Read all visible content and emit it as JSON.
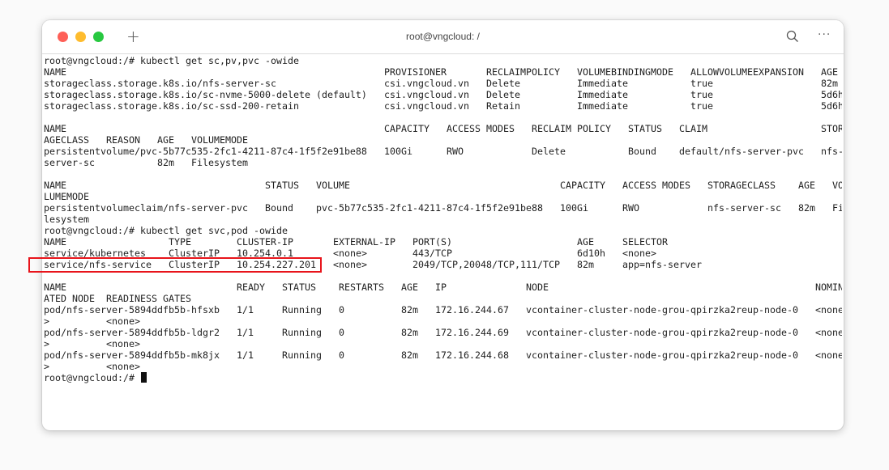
{
  "window": {
    "title": "root@vngcloud: /",
    "new_tab_label": "+",
    "more_label": "···",
    "highlight_color": "#e8141b"
  },
  "terminal": {
    "lines": [
      [
        "root@vngcloud:/# kubectl get sc,pv,pvc -owide"
      ],
      [
        "NAME",
        "PROVISIONER",
        "RECLAIMPOLICY",
        "VOLUMEBINDINGMODE",
        "ALLOWVOLUMEEXPANSION",
        "AGE"
      ],
      [
        "storageclass.storage.k8s.io/nfs-server-sc",
        "csi.vngcloud.vn",
        "Delete",
        "Immediate",
        "true",
        "82m"
      ],
      [
        "storageclass.storage.k8s.io/sc-nvme-5000-delete (default)",
        "csi.vngcloud.vn",
        "Delete",
        "Immediate",
        "true",
        "5d6h"
      ],
      [
        "storageclass.storage.k8s.io/sc-ssd-200-retain",
        "csi.vngcloud.vn",
        "Retain",
        "Immediate",
        "true",
        "5d6h"
      ],
      [],
      [
        "NAME",
        "CAPACITY",
        "ACCESS MODES",
        "RECLAIM POLICY",
        "STATUS",
        "CLAIM",
        "STOR"
      ],
      [
        "AGECLASS",
        "REASON",
        "AGE",
        "VOLUMEMODE"
      ],
      [
        "persistentvolume/pvc-5b77c535-2fc1-4211-87c4-1f5f2e91be88",
        "100Gi",
        "RWO",
        "Delete",
        "Bound",
        "default/nfs-server-pvc",
        "nfs-"
      ],
      [
        "server-sc",
        "82m",
        "Filesystem"
      ],
      [],
      [
        "NAME",
        "STATUS",
        "VOLUME",
        "CAPACITY",
        "ACCESS MODES",
        "STORAGECLASS",
        "AGE",
        "VO"
      ],
      [
        "LUMEMODE"
      ],
      [
        "persistentvolumeclaim/nfs-server-pvc",
        "Bound",
        "pvc-5b77c535-2fc1-4211-87c4-1f5f2e91be88",
        "100Gi",
        "RWO",
        "nfs-server-sc",
        "82m",
        "Fi"
      ],
      [
        "lesystem"
      ],
      [
        "root@vngcloud:/# kubectl get svc,pod -owide"
      ],
      [
        "NAME",
        "TYPE",
        "CLUSTER-IP",
        "EXTERNAL-IP",
        "PORT(S)",
        "AGE",
        "SELECTOR"
      ],
      [
        "service/kubernetes",
        "ClusterIP",
        "10.254.0.1",
        "<none>",
        "443/TCP",
        "6d10h",
        "<none>"
      ],
      [
        "service/nfs-service",
        "ClusterIP",
        "10.254.227.201",
        "<none>",
        "2049/TCP,20048/TCP,111/TCP",
        "82m",
        "app=nfs-server"
      ],
      [],
      [
        "NAME",
        "READY",
        "STATUS",
        "RESTARTS",
        "AGE",
        "IP",
        "NODE",
        "NOMIN"
      ],
      [
        "ATED NODE",
        "READINESS GATES"
      ],
      [
        "pod/nfs-server-5894ddfb5b-hfsxb",
        "1/1",
        "Running",
        "0",
        "82m",
        "172.16.244.67",
        "vcontainer-cluster-node-grou-qpirzka2reup-node-0",
        "<none"
      ],
      [
        ">",
        "<none>"
      ],
      [
        "pod/nfs-server-5894ddfb5b-ldgr2",
        "1/1",
        "Running",
        "0",
        "82m",
        "172.16.244.69",
        "vcontainer-cluster-node-grou-qpirzka2reup-node-0",
        "<none"
      ],
      [
        ">",
        "<none>"
      ],
      [
        "pod/nfs-server-5894ddfb5b-mk8jx",
        "1/1",
        "Running",
        "0",
        "82m",
        "172.16.244.68",
        "vcontainer-cluster-node-grou-qpirzka2reup-node-0",
        "<none"
      ],
      [
        ">",
        "<none>"
      ],
      [
        "root@vngcloud:/# "
      ]
    ]
  }
}
